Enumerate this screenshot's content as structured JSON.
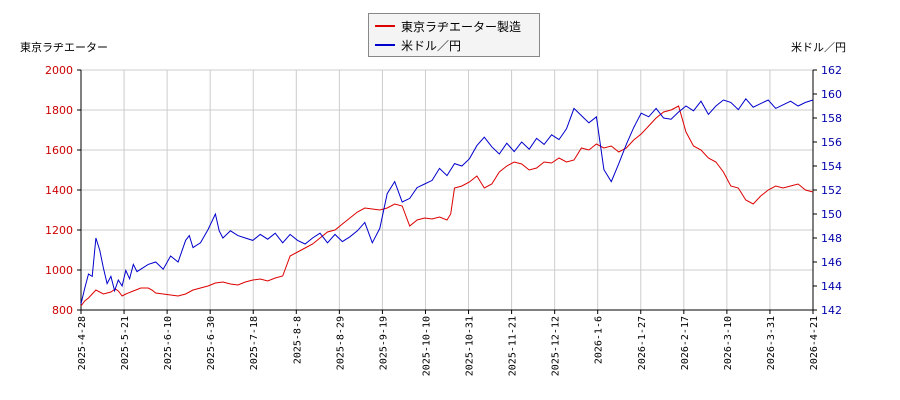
{
  "legend": {
    "s1": "東京ラヂエーター製造",
    "s2": "米ドル／円"
  },
  "left_axis_title": "東京ラヂエーター",
  "right_axis_title": "米ドル／円",
  "colors": {
    "s1": "#dd0000",
    "s2": "#0000cc",
    "grid": "#cccccc",
    "left_ticks": "#cc0000",
    "right_ticks": "#0000aa"
  },
  "chart_data": {
    "type": "line",
    "x_ticks": [
      "2025-4-28",
      "2025-5-21",
      "2025-6-10",
      "2025-6-30",
      "2025-7-18",
      "2025-8-8",
      "2025-8-29",
      "2025-9-19",
      "2025-10-10",
      "2025-10-31",
      "2025-11-21",
      "2025-12-12",
      "2026-1-6",
      "2026-1-27",
      "2026-2-17",
      "2026-3-10",
      "2026-3-31",
      "2026-4-21"
    ],
    "y_left": {
      "label": "東京ラヂエーター",
      "ylim": [
        800,
        2000
      ],
      "ticks": [
        800,
        1000,
        1200,
        1400,
        1600,
        1800,
        2000
      ]
    },
    "y_right": {
      "label": "米ドル／円",
      "ylim": [
        142,
        162
      ],
      "ticks": [
        142,
        144,
        146,
        148,
        150,
        152,
        154,
        156,
        158,
        160,
        162
      ]
    },
    "grid": true,
    "legend_position": "top-center",
    "series": [
      {
        "name": "東京ラヂエーター製造",
        "axis": "left",
        "points": [
          [
            0,
            820
          ],
          [
            0.5,
            845
          ],
          [
            1,
            860
          ],
          [
            1.5,
            880
          ],
          [
            2,
            900
          ],
          [
            3,
            880
          ],
          [
            4,
            890
          ],
          [
            4.6,
            905
          ],
          [
            5,
            895
          ],
          [
            5.5,
            870
          ],
          [
            6,
            880
          ],
          [
            7,
            895
          ],
          [
            8,
            910
          ],
          [
            9,
            910
          ],
          [
            9.5,
            900
          ],
          [
            10,
            885
          ],
          [
            11,
            880
          ],
          [
            12,
            875
          ],
          [
            13,
            870
          ],
          [
            14,
            880
          ],
          [
            15,
            900
          ],
          [
            16,
            910
          ],
          [
            17,
            920
          ],
          [
            18,
            935
          ],
          [
            19,
            940
          ],
          [
            20,
            930
          ],
          [
            21,
            925
          ],
          [
            22,
            940
          ],
          [
            23,
            950
          ],
          [
            24,
            955
          ],
          [
            25,
            945
          ],
          [
            26,
            960
          ],
          [
            27,
            970
          ],
          [
            28,
            1070
          ],
          [
            29,
            1090
          ],
          [
            30,
            1110
          ],
          [
            31,
            1130
          ],
          [
            32,
            1160
          ],
          [
            33,
            1190
          ],
          [
            34,
            1200
          ],
          [
            35,
            1230
          ],
          [
            36,
            1260
          ],
          [
            37,
            1290
          ],
          [
            38,
            1310
          ],
          [
            39,
            1305
          ],
          [
            40,
            1300
          ],
          [
            41,
            1310
          ],
          [
            42,
            1330
          ],
          [
            43,
            1320
          ],
          [
            44,
            1220
          ],
          [
            45,
            1250
          ],
          [
            46,
            1260
          ],
          [
            47,
            1255
          ],
          [
            48,
            1265
          ],
          [
            49,
            1250
          ],
          [
            49.5,
            1280
          ],
          [
            50,
            1410
          ],
          [
            51,
            1420
          ],
          [
            52,
            1440
          ],
          [
            53,
            1470
          ],
          [
            54,
            1410
          ],
          [
            55,
            1430
          ],
          [
            56,
            1490
          ],
          [
            57,
            1520
          ],
          [
            58,
            1540
          ],
          [
            59,
            1530
          ],
          [
            60,
            1500
          ],
          [
            61,
            1510
          ],
          [
            62,
            1540
          ],
          [
            63,
            1535
          ],
          [
            64,
            1560
          ],
          [
            65,
            1540
          ],
          [
            66,
            1550
          ],
          [
            67,
            1610
          ],
          [
            68,
            1600
          ],
          [
            69,
            1630
          ],
          [
            70,
            1610
          ],
          [
            71,
            1620
          ],
          [
            72,
            1590
          ],
          [
            73,
            1610
          ],
          [
            74,
            1650
          ],
          [
            75,
            1680
          ],
          [
            76,
            1720
          ],
          [
            77,
            1760
          ],
          [
            78,
            1790
          ],
          [
            79,
            1800
          ],
          [
            80,
            1820
          ],
          [
            81,
            1690
          ],
          [
            82,
            1620
          ],
          [
            83,
            1600
          ],
          [
            84,
            1560
          ],
          [
            85,
            1540
          ],
          [
            86,
            1490
          ],
          [
            87,
            1420
          ],
          [
            88,
            1410
          ],
          [
            89,
            1350
          ],
          [
            90,
            1330
          ],
          [
            91,
            1370
          ],
          [
            92,
            1400
          ],
          [
            93,
            1420
          ],
          [
            94,
            1410
          ],
          [
            95,
            1420
          ],
          [
            96,
            1430
          ],
          [
            97,
            1400
          ],
          [
            98,
            1390
          ]
        ]
      },
      {
        "name": "米ドル／円",
        "axis": "right",
        "points": [
          [
            0,
            142.5
          ],
          [
            0.5,
            143.8
          ],
          [
            1,
            145.0
          ],
          [
            1.5,
            144.8
          ],
          [
            2,
            148.0
          ],
          [
            2.5,
            147.0
          ],
          [
            3,
            145.5
          ],
          [
            3.5,
            144.2
          ],
          [
            4,
            144.8
          ],
          [
            4.5,
            143.6
          ],
          [
            5,
            144.5
          ],
          [
            5.5,
            144.0
          ],
          [
            6,
            145.3
          ],
          [
            6.5,
            144.6
          ],
          [
            7,
            145.8
          ],
          [
            7.5,
            145.2
          ],
          [
            8,
            145.4
          ],
          [
            9,
            145.8
          ],
          [
            10,
            146.0
          ],
          [
            11,
            145.4
          ],
          [
            12,
            146.5
          ],
          [
            13,
            146.0
          ],
          [
            14,
            147.8
          ],
          [
            14.5,
            148.2
          ],
          [
            15,
            147.2
          ],
          [
            16,
            147.6
          ],
          [
            17,
            148.7
          ],
          [
            18,
            150.0
          ],
          [
            18.5,
            148.6
          ],
          [
            19,
            148.0
          ],
          [
            20,
            148.6
          ],
          [
            21,
            148.2
          ],
          [
            22,
            148.0
          ],
          [
            23,
            147.8
          ],
          [
            24,
            148.3
          ],
          [
            25,
            147.9
          ],
          [
            26,
            148.4
          ],
          [
            27,
            147.6
          ],
          [
            28,
            148.3
          ],
          [
            29,
            147.8
          ],
          [
            30,
            147.5
          ],
          [
            31,
            148.0
          ],
          [
            32,
            148.4
          ],
          [
            33,
            147.6
          ],
          [
            34,
            148.3
          ],
          [
            35,
            147.7
          ],
          [
            36,
            148.1
          ],
          [
            37,
            148.6
          ],
          [
            38,
            149.3
          ],
          [
            39,
            147.6
          ],
          [
            40,
            148.8
          ],
          [
            41,
            151.7
          ],
          [
            42,
            152.7
          ],
          [
            43,
            151.0
          ],
          [
            44,
            151.3
          ],
          [
            45,
            152.2
          ],
          [
            46,
            152.5
          ],
          [
            47,
            152.8
          ],
          [
            48,
            153.8
          ],
          [
            49,
            153.2
          ],
          [
            50,
            154.2
          ],
          [
            51,
            154.0
          ],
          [
            52,
            154.6
          ],
          [
            53,
            155.7
          ],
          [
            54,
            156.4
          ],
          [
            55,
            155.6
          ],
          [
            56,
            155.0
          ],
          [
            57,
            155.9
          ],
          [
            58,
            155.2
          ],
          [
            59,
            156.0
          ],
          [
            60,
            155.4
          ],
          [
            61,
            156.3
          ],
          [
            62,
            155.8
          ],
          [
            63,
            156.6
          ],
          [
            64,
            156.2
          ],
          [
            65,
            157.1
          ],
          [
            66,
            158.8
          ],
          [
            67,
            158.2
          ],
          [
            68,
            157.6
          ],
          [
            69,
            158.1
          ],
          [
            70,
            153.7
          ],
          [
            71,
            152.7
          ],
          [
            72,
            154.2
          ],
          [
            73,
            155.8
          ],
          [
            74,
            157.2
          ],
          [
            75,
            158.4
          ],
          [
            76,
            158.1
          ],
          [
            77,
            158.8
          ],
          [
            78,
            158.0
          ],
          [
            79,
            157.9
          ],
          [
            80,
            158.5
          ],
          [
            81,
            159.0
          ],
          [
            82,
            158.6
          ],
          [
            83,
            159.4
          ],
          [
            84,
            158.3
          ],
          [
            85,
            159.0
          ],
          [
            86,
            159.5
          ],
          [
            87,
            159.3
          ],
          [
            88,
            158.7
          ],
          [
            89,
            159.6
          ],
          [
            90,
            158.9
          ],
          [
            91,
            159.2
          ],
          [
            92,
            159.5
          ],
          [
            93,
            158.8
          ],
          [
            94,
            159.1
          ],
          [
            95,
            159.4
          ],
          [
            96,
            159.0
          ],
          [
            97,
            159.3
          ],
          [
            98,
            159.5
          ]
        ]
      }
    ]
  }
}
